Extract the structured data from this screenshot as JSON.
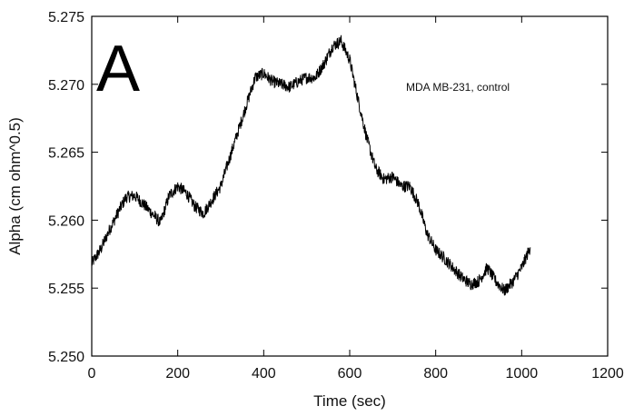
{
  "chart_data": {
    "type": "line",
    "title": "",
    "xlabel": "Time (sec)",
    "ylabel": "Alpha (cm ohm^0.5)",
    "xlim": [
      0,
      1200
    ],
    "ylim": [
      5.25,
      5.275
    ],
    "x_ticks": [
      0,
      200,
      400,
      600,
      800,
      1000,
      1200
    ],
    "y_ticks": [
      5.25,
      5.255,
      5.26,
      5.265,
      5.27,
      5.275
    ],
    "x_tick_labels": [
      "0",
      "200",
      "400",
      "600",
      "800",
      "1000",
      "1200"
    ],
    "y_tick_labels": [
      "5.250",
      "5.255",
      "5.260",
      "5.265",
      "5.270",
      "5.275"
    ],
    "grid": false,
    "legend": "none",
    "panel_label": "A",
    "annotation": "MDA MB-231, control",
    "line_color": "#000000",
    "series": [
      {
        "x": [
          0,
          20,
          40,
          60,
          80,
          100,
          120,
          140,
          160,
          180,
          200,
          220,
          240,
          260,
          280,
          300,
          320,
          340,
          360,
          380,
          400,
          420,
          440,
          460,
          480,
          500,
          520,
          540,
          560,
          580,
          600,
          620,
          640,
          660,
          680,
          700,
          720,
          740,
          760,
          780,
          800,
          820,
          840,
          860,
          880,
          900,
          920,
          940,
          960,
          980,
          1000,
          1020
        ],
        "values": [
          5.2568,
          5.2578,
          5.2592,
          5.2605,
          5.2617,
          5.2618,
          5.2612,
          5.2605,
          5.2598,
          5.2618,
          5.2625,
          5.262,
          5.261,
          5.2605,
          5.2615,
          5.2625,
          5.2645,
          5.2665,
          5.2685,
          5.2705,
          5.2708,
          5.2702,
          5.27,
          5.2698,
          5.2702,
          5.2705,
          5.2705,
          5.2715,
          5.2728,
          5.2732,
          5.2718,
          5.2688,
          5.266,
          5.2638,
          5.263,
          5.2632,
          5.2625,
          5.2625,
          5.2612,
          5.259,
          5.2578,
          5.2572,
          5.2565,
          5.2558,
          5.2553,
          5.2555,
          5.2565,
          5.2555,
          5.2548,
          5.2555,
          5.2565,
          5.258
        ]
      }
    ]
  }
}
